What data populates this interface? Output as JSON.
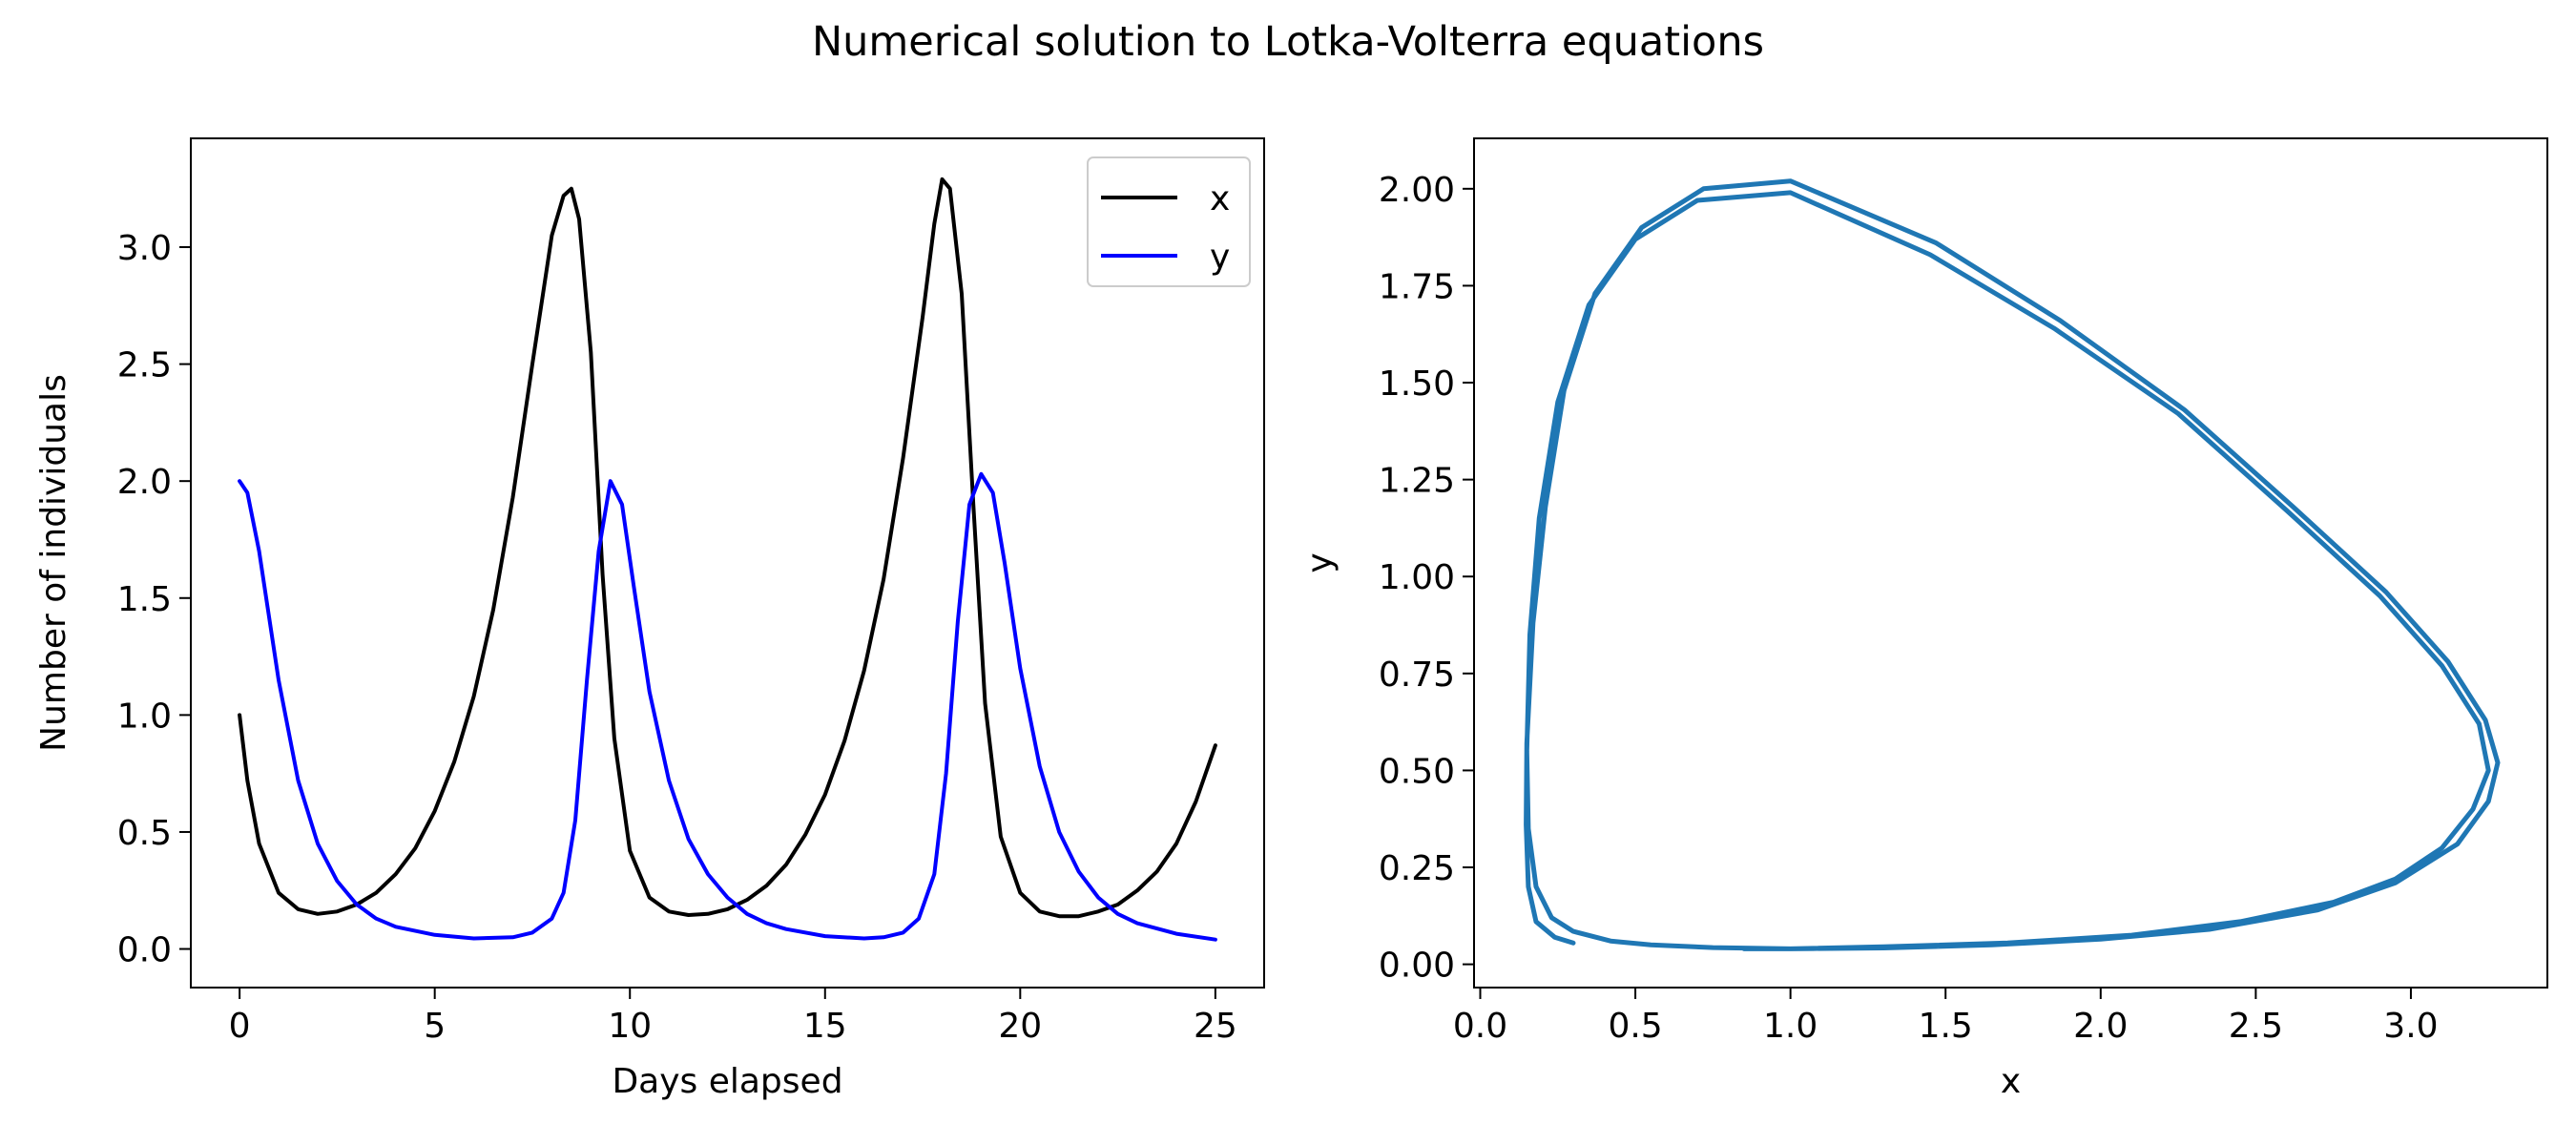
{
  "figure": {
    "title": "Numerical solution to Lotka-Volterra equations"
  },
  "chart_data": [
    {
      "type": "line",
      "panel": "time-series",
      "xlabel": "Days elapsed",
      "ylabel": "Number of individuals",
      "xlim": [
        -1.25,
        26.25
      ],
      "ylim": [
        -0.165,
        3.465
      ],
      "xticks": [
        0,
        5,
        10,
        15,
        20,
        25
      ],
      "xtick_labels": [
        "0",
        "5",
        "10",
        "15",
        "20",
        "25"
      ],
      "yticks": [
        0.0,
        0.5,
        1.0,
        1.5,
        2.0,
        2.5,
        3.0
      ],
      "ytick_labels": [
        "0.0",
        "0.5",
        "1.0",
        "1.5",
        "2.0",
        "2.5",
        "3.0"
      ],
      "grid": false,
      "legend": "upper right",
      "series": [
        {
          "name": "x",
          "color": "#000000",
          "x": [
            0,
            0.2,
            0.5,
            1.0,
            1.5,
            2.0,
            2.5,
            3.0,
            3.5,
            4.0,
            4.5,
            5.0,
            5.5,
            6.0,
            6.5,
            7.0,
            7.5,
            8.0,
            8.3,
            8.5,
            8.7,
            9.0,
            9.3,
            9.6,
            10.0,
            10.5,
            11.0,
            11.5,
            12.0,
            12.5,
            13.0,
            13.5,
            14.0,
            14.5,
            15.0,
            15.5,
            16.0,
            16.5,
            17.0,
            17.5,
            17.8,
            18.0,
            18.2,
            18.5,
            18.8,
            19.1,
            19.5,
            20.0,
            20.5,
            21.0,
            21.5,
            22.0,
            22.5,
            23.0,
            23.5,
            24.0,
            24.5,
            25.0
          ],
          "y": [
            1.0,
            0.72,
            0.45,
            0.24,
            0.17,
            0.15,
            0.16,
            0.19,
            0.24,
            0.32,
            0.43,
            0.59,
            0.8,
            1.08,
            1.45,
            1.93,
            2.5,
            3.05,
            3.22,
            3.25,
            3.12,
            2.55,
            1.6,
            0.9,
            0.42,
            0.22,
            0.16,
            0.145,
            0.15,
            0.17,
            0.21,
            0.27,
            0.36,
            0.49,
            0.66,
            0.89,
            1.19,
            1.58,
            2.1,
            2.7,
            3.1,
            3.29,
            3.25,
            2.8,
            1.9,
            1.05,
            0.48,
            0.24,
            0.16,
            0.14,
            0.14,
            0.16,
            0.19,
            0.25,
            0.33,
            0.45,
            0.63,
            0.87
          ]
        },
        {
          "name": "y",
          "color": "#0000ff",
          "x": [
            0,
            0.2,
            0.5,
            1.0,
            1.5,
            2.0,
            2.5,
            3.0,
            3.5,
            4.0,
            5.0,
            6.0,
            7.0,
            7.5,
            8.0,
            8.3,
            8.6,
            8.9,
            9.2,
            9.5,
            9.8,
            10.1,
            10.5,
            11.0,
            11.5,
            12.0,
            12.5,
            13.0,
            13.5,
            14.0,
            15.0,
            16.0,
            16.5,
            17.0,
            17.4,
            17.8,
            18.1,
            18.4,
            18.7,
            19.0,
            19.3,
            19.6,
            20.0,
            20.5,
            21.0,
            21.5,
            22.0,
            22.5,
            23.0,
            24.0,
            25.0
          ],
          "y": [
            2.0,
            1.95,
            1.7,
            1.15,
            0.72,
            0.45,
            0.29,
            0.19,
            0.13,
            0.095,
            0.06,
            0.045,
            0.05,
            0.07,
            0.13,
            0.24,
            0.55,
            1.15,
            1.7,
            2.0,
            1.9,
            1.55,
            1.1,
            0.72,
            0.47,
            0.32,
            0.22,
            0.15,
            0.11,
            0.085,
            0.055,
            0.045,
            0.05,
            0.07,
            0.13,
            0.32,
            0.75,
            1.4,
            1.9,
            2.03,
            1.95,
            1.65,
            1.2,
            0.78,
            0.5,
            0.33,
            0.22,
            0.15,
            0.11,
            0.065,
            0.04
          ]
        }
      ]
    },
    {
      "type": "line",
      "panel": "phase-portrait",
      "xlabel": "x",
      "ylabel": "y",
      "xlim": [
        -0.02,
        3.44
      ],
      "ylim": [
        -0.06,
        2.13
      ],
      "xticks": [
        0.0,
        0.5,
        1.0,
        1.5,
        2.0,
        2.5,
        3.0
      ],
      "xtick_labels": [
        "0.0",
        "0.5",
        "1.0",
        "1.5",
        "2.0",
        "2.5",
        "3.0"
      ],
      "yticks": [
        0.0,
        0.25,
        0.5,
        0.75,
        1.0,
        1.25,
        1.5,
        1.75,
        2.0
      ],
      "ytick_labels": [
        "0.00",
        "0.25",
        "0.50",
        "0.75",
        "1.00",
        "1.25",
        "1.50",
        "1.75",
        "2.00"
      ],
      "grid": false,
      "series": [
        {
          "color": "#1f77b4",
          "x": [
            0.85,
            1.0,
            1.3,
            1.7,
            2.1,
            2.45,
            2.75,
            2.95,
            3.1,
            3.2,
            3.25,
            3.22,
            3.1,
            2.9,
            2.6,
            2.25,
            1.85,
            1.45,
            1.0,
            0.7,
            0.5,
            0.35,
            0.25,
            0.19,
            0.16,
            0.15,
            0.155,
            0.18,
            0.23,
            0.3,
            0.42,
            0.55,
            0.75,
            1.0,
            1.3,
            1.65,
            2.0,
            2.35,
            2.7,
            2.95,
            3.15,
            3.25,
            3.28,
            3.24,
            3.12,
            2.92,
            2.62,
            2.27,
            1.87,
            1.47,
            1.0,
            0.72,
            0.52,
            0.37,
            0.27,
            0.21,
            0.17,
            0.15,
            0.148,
            0.155,
            0.18,
            0.24,
            0.3
          ],
          "y": [
            0.04,
            0.04,
            0.045,
            0.055,
            0.075,
            0.11,
            0.16,
            0.22,
            0.3,
            0.4,
            0.5,
            0.62,
            0.77,
            0.95,
            1.17,
            1.42,
            1.64,
            1.83,
            1.99,
            1.97,
            1.87,
            1.7,
            1.45,
            1.15,
            0.85,
            0.55,
            0.35,
            0.2,
            0.12,
            0.085,
            0.06,
            0.05,
            0.043,
            0.04,
            0.042,
            0.05,
            0.065,
            0.09,
            0.14,
            0.21,
            0.31,
            0.42,
            0.52,
            0.63,
            0.78,
            0.96,
            1.18,
            1.43,
            1.66,
            1.86,
            2.02,
            2.0,
            1.9,
            1.73,
            1.48,
            1.18,
            0.88,
            0.57,
            0.36,
            0.2,
            0.11,
            0.07,
            0.055
          ]
        }
      ]
    }
  ]
}
